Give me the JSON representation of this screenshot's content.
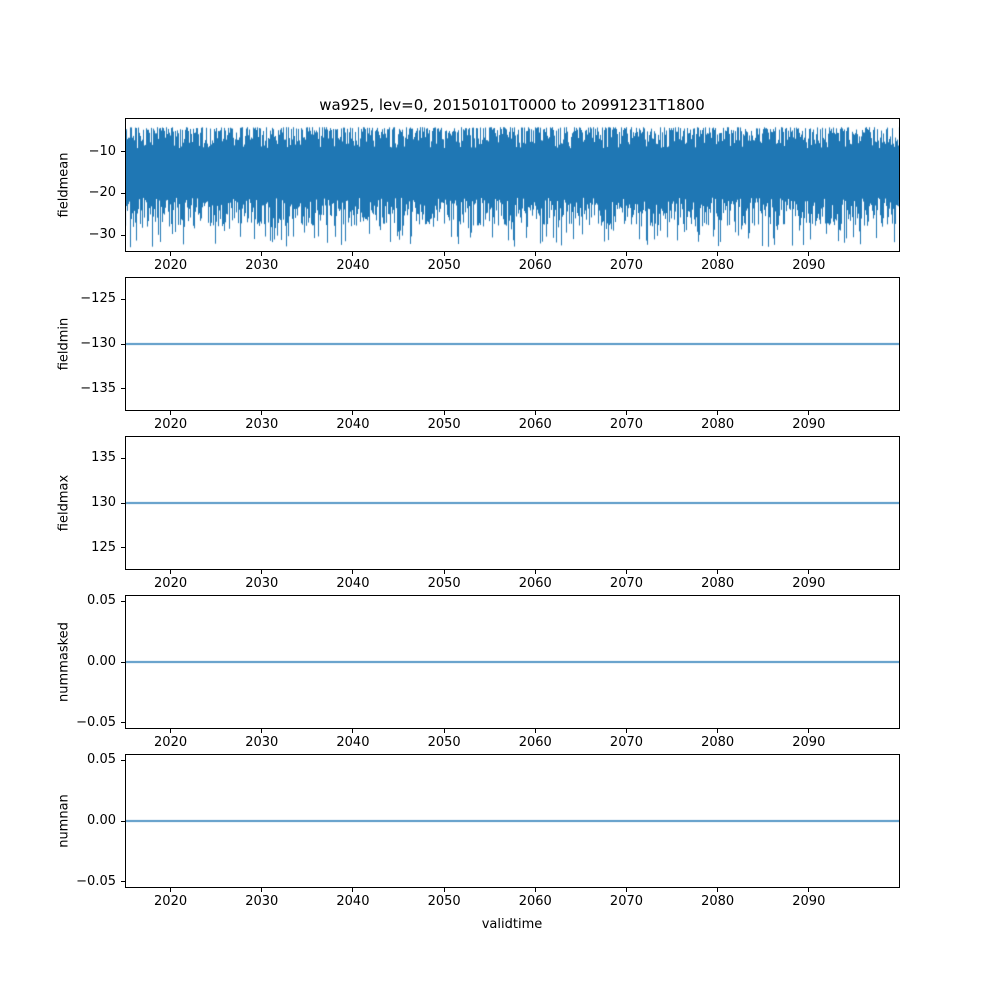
{
  "chart_data": {
    "type": "line",
    "title": "wa925, lev=0, 20150101T0000 to 20991231T1800",
    "xlabel": "validtime",
    "xlim": [
      2015,
      2100
    ],
    "xticks": [
      2020,
      2030,
      2040,
      2050,
      2060,
      2070,
      2080,
      2090
    ],
    "xtick_labels": [
      "2020",
      "2030",
      "2040",
      "2050",
      "2060",
      "2070",
      "2080",
      "2090"
    ],
    "line_color": "#1f77b4",
    "background": "#ffffff",
    "grid": false,
    "legend": "none",
    "panels": [
      {
        "name": "fieldmean",
        "ylabel": "fieldmean",
        "ylim": [
          -34,
          -2
        ],
        "yticks": [
          -10,
          -20,
          -30
        ],
        "ytick_labels": [
          "−10",
          "−20",
          "−30"
        ],
        "series": {
          "kind": "noise",
          "description": "dense high-frequency noisy series spanning 2015-2099; core band approx −8 to −25, upper peaks approx −4 to −5, lower spikes down to approx −33",
          "seed": 20150101,
          "core_top": [
            -4.2,
            -9.2
          ],
          "core_bottom": [
            -21,
            -28
          ],
          "spike_prob": 0.18,
          "spike_bottom": [
            -27,
            -33
          ]
        }
      },
      {
        "name": "fieldmin",
        "ylabel": "fieldmin",
        "ylim": [
          -137.5,
          -122.5
        ],
        "yticks": [
          -125,
          -130,
          -135
        ],
        "ytick_labels": [
          "−125",
          "−130",
          "−135"
        ],
        "series": {
          "kind": "constant",
          "value": -130
        }
      },
      {
        "name": "fieldmax",
        "ylabel": "fieldmax",
        "ylim": [
          122.5,
          137.5
        ],
        "yticks": [
          135,
          130,
          125
        ],
        "ytick_labels": [
          "135",
          "130",
          "125"
        ],
        "series": {
          "kind": "constant",
          "value": 130
        }
      },
      {
        "name": "nummasked",
        "ylabel": "nummasked",
        "ylim": [
          -0.055,
          0.055
        ],
        "yticks": [
          0.05,
          0,
          -0.05
        ],
        "ytick_labels": [
          "0.05",
          "0.00",
          "−0.05"
        ],
        "series": {
          "kind": "constant",
          "value": 0
        }
      },
      {
        "name": "numnan",
        "ylabel": "numnan",
        "ylim": [
          -0.055,
          0.055
        ],
        "yticks": [
          0.05,
          0,
          -0.05
        ],
        "ytick_labels": [
          "0.05",
          "0.00",
          "−0.05"
        ],
        "series": {
          "kind": "constant",
          "value": 0
        }
      }
    ]
  }
}
